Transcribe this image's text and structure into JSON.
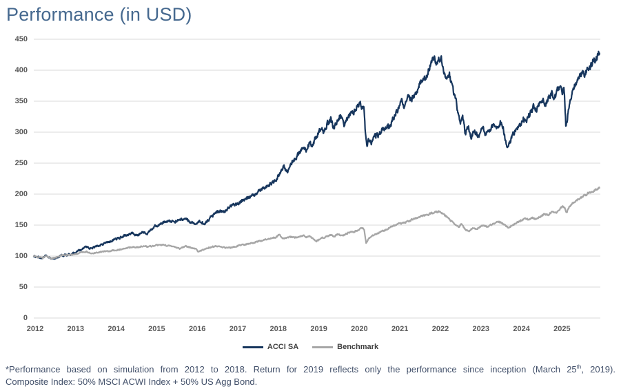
{
  "title": "Performance (in USD)",
  "footnote": {
    "line1_before_sup": "*Performance based on simulation from 2012 to 2018. Return for 2019 reflects only the performance since inception (March 25",
    "line1_sup": "th",
    "line1_after_sup": ", 2019).",
    "line2": "Composite Index: 50% MSCI ACWI Index + 50% US Agg Bond."
  },
  "chart_data": {
    "type": "line",
    "title": "Performance (in USD)",
    "xlabel": "",
    "ylabel": "",
    "x_range": [
      2012,
      2026
    ],
    "ylim": [
      0,
      450
    ],
    "grid": "horizontal",
    "grid_color": "#d9d9d9",
    "x_ticks": [
      "2012",
      "2013",
      "2014",
      "2015",
      "2016",
      "2017",
      "2018",
      "2019",
      "2020",
      "2021",
      "2022",
      "2023",
      "2024",
      "2025"
    ],
    "y_ticks": [
      0,
      50,
      100,
      150,
      200,
      250,
      300,
      350,
      400,
      450
    ],
    "legend_position": "bottom-center",
    "series": [
      {
        "name": "ACCI SA",
        "color": "#17365d",
        "points": [
          [
            2012.0,
            100
          ],
          [
            2012.1,
            98
          ],
          [
            2012.22,
            96.5
          ],
          [
            2012.3,
            101
          ],
          [
            2012.42,
            95.5
          ],
          [
            2012.55,
            97
          ],
          [
            2012.7,
            101
          ],
          [
            2012.85,
            102
          ],
          [
            2013.0,
            105
          ],
          [
            2013.15,
            110
          ],
          [
            2013.3,
            115
          ],
          [
            2013.42,
            112
          ],
          [
            2013.55,
            117
          ],
          [
            2013.7,
            119
          ],
          [
            2013.85,
            123
          ],
          [
            2014.0,
            127
          ],
          [
            2014.15,
            130
          ],
          [
            2014.3,
            134
          ],
          [
            2014.45,
            137
          ],
          [
            2014.55,
            133
          ],
          [
            2014.7,
            139
          ],
          [
            2014.8,
            136
          ],
          [
            2014.9,
            143
          ],
          [
            2015.0,
            148
          ],
          [
            2015.15,
            153
          ],
          [
            2015.3,
            157
          ],
          [
            2015.45,
            155
          ],
          [
            2015.6,
            158
          ],
          [
            2015.75,
            160
          ],
          [
            2015.85,
            156
          ],
          [
            2016.0,
            153
          ],
          [
            2016.1,
            157
          ],
          [
            2016.2,
            152
          ],
          [
            2016.35,
            162
          ],
          [
            2016.5,
            170
          ],
          [
            2016.6,
            174
          ],
          [
            2016.7,
            172
          ],
          [
            2016.85,
            180
          ],
          [
            2017.0,
            184
          ],
          [
            2017.15,
            190
          ],
          [
            2017.3,
            195
          ],
          [
            2017.45,
            200
          ],
          [
            2017.6,
            207
          ],
          [
            2017.75,
            212
          ],
          [
            2017.9,
            219
          ],
          [
            2018.0,
            226
          ],
          [
            2018.1,
            238
          ],
          [
            2018.17,
            245
          ],
          [
            2018.25,
            236
          ],
          [
            2018.35,
            250
          ],
          [
            2018.45,
            258
          ],
          [
            2018.55,
            266
          ],
          [
            2018.65,
            276
          ],
          [
            2018.72,
            270
          ],
          [
            2018.8,
            283
          ],
          [
            2018.88,
            278
          ],
          [
            2018.95,
            290
          ],
          [
            2019.0,
            295
          ],
          [
            2019.08,
            308
          ],
          [
            2019.15,
            300
          ],
          [
            2019.25,
            315
          ],
          [
            2019.33,
            320
          ],
          [
            2019.4,
            305
          ],
          [
            2019.5,
            322
          ],
          [
            2019.57,
            328
          ],
          [
            2019.65,
            310
          ],
          [
            2019.75,
            322
          ],
          [
            2019.85,
            330
          ],
          [
            2019.95,
            340
          ],
          [
            2020.05,
            346
          ],
          [
            2020.1,
            338
          ],
          [
            2020.14,
            345
          ],
          [
            2020.18,
            300
          ],
          [
            2020.22,
            280
          ],
          [
            2020.28,
            290
          ],
          [
            2020.33,
            284
          ],
          [
            2020.4,
            292
          ],
          [
            2020.5,
            296
          ],
          [
            2020.6,
            303
          ],
          [
            2020.7,
            312
          ],
          [
            2020.78,
            306
          ],
          [
            2020.88,
            325
          ],
          [
            2021.0,
            340
          ],
          [
            2021.08,
            350
          ],
          [
            2021.15,
            342
          ],
          [
            2021.25,
            356
          ],
          [
            2021.33,
            352
          ],
          [
            2021.45,
            368
          ],
          [
            2021.55,
            382
          ],
          [
            2021.62,
            392
          ],
          [
            2021.68,
            386
          ],
          [
            2021.75,
            404
          ],
          [
            2021.82,
            412
          ],
          [
            2021.88,
            420
          ],
          [
            2021.93,
            408
          ],
          [
            2022.0,
            418
          ],
          [
            2022.05,
            420
          ],
          [
            2022.1,
            405
          ],
          [
            2022.17,
            385
          ],
          [
            2022.25,
            396
          ],
          [
            2022.33,
            370
          ],
          [
            2022.42,
            352
          ],
          [
            2022.48,
            328
          ],
          [
            2022.53,
            315
          ],
          [
            2022.58,
            325
          ],
          [
            2022.65,
            298
          ],
          [
            2022.72,
            310
          ],
          [
            2022.8,
            292
          ],
          [
            2022.88,
            303
          ],
          [
            2022.95,
            294
          ],
          [
            2023.0,
            297
          ],
          [
            2023.08,
            308
          ],
          [
            2023.15,
            296
          ],
          [
            2023.25,
            303
          ],
          [
            2023.35,
            312
          ],
          [
            2023.45,
            306
          ],
          [
            2023.52,
            316
          ],
          [
            2023.58,
            308
          ],
          [
            2023.63,
            290
          ],
          [
            2023.68,
            278
          ],
          [
            2023.75,
            284
          ],
          [
            2023.83,
            296
          ],
          [
            2023.92,
            306
          ],
          [
            2024.0,
            312
          ],
          [
            2024.08,
            322
          ],
          [
            2024.15,
            316
          ],
          [
            2024.25,
            331
          ],
          [
            2024.33,
            341
          ],
          [
            2024.4,
            334
          ],
          [
            2024.5,
            347
          ],
          [
            2024.57,
            353
          ],
          [
            2024.62,
            342
          ],
          [
            2024.7,
            356
          ],
          [
            2024.78,
            363
          ],
          [
            2024.85,
            354
          ],
          [
            2024.93,
            369
          ],
          [
            2025.0,
            372
          ],
          [
            2025.04,
            366
          ],
          [
            2025.08,
            374
          ],
          [
            2025.1,
            352
          ],
          [
            2025.115,
            330
          ],
          [
            2025.13,
            308
          ],
          [
            2025.18,
            330
          ],
          [
            2025.25,
            352
          ],
          [
            2025.32,
            368
          ],
          [
            2025.4,
            381
          ],
          [
            2025.48,
            390
          ],
          [
            2025.55,
            397
          ],
          [
            2025.6,
            392
          ],
          [
            2025.68,
            406
          ],
          [
            2025.72,
            401
          ],
          [
            2025.8,
            415
          ],
          [
            2025.85,
            419
          ],
          [
            2025.9,
            422
          ],
          [
            2025.96,
            426
          ]
        ]
      },
      {
        "name": "Benchmark",
        "color": "#a6a6a6",
        "points": [
          [
            2012.0,
            100
          ],
          [
            2012.1,
            98.5
          ],
          [
            2012.22,
            97
          ],
          [
            2012.3,
            100
          ],
          [
            2012.42,
            96
          ],
          [
            2012.55,
            98
          ],
          [
            2012.7,
            101
          ],
          [
            2012.85,
            102
          ],
          [
            2013.0,
            102.5
          ],
          [
            2013.15,
            105
          ],
          [
            2013.3,
            107
          ],
          [
            2013.42,
            104
          ],
          [
            2013.55,
            106
          ],
          [
            2013.7,
            107
          ],
          [
            2013.85,
            108
          ],
          [
            2014.0,
            109
          ],
          [
            2014.15,
            111
          ],
          [
            2014.3,
            113
          ],
          [
            2014.45,
            115
          ],
          [
            2014.55,
            114
          ],
          [
            2014.7,
            116
          ],
          [
            2014.8,
            115
          ],
          [
            2014.9,
            116
          ],
          [
            2015.0,
            117
          ],
          [
            2015.15,
            118
          ],
          [
            2015.3,
            117
          ],
          [
            2015.45,
            116
          ],
          [
            2015.6,
            112
          ],
          [
            2015.75,
            116
          ],
          [
            2015.85,
            114
          ],
          [
            2016.0,
            112
          ],
          [
            2016.06,
            107
          ],
          [
            2016.2,
            111
          ],
          [
            2016.35,
            114
          ],
          [
            2016.5,
            116
          ],
          [
            2016.6,
            115
          ],
          [
            2016.75,
            113
          ],
          [
            2016.9,
            114
          ],
          [
            2017.0,
            116
          ],
          [
            2017.15,
            118
          ],
          [
            2017.3,
            120
          ],
          [
            2017.45,
            122
          ],
          [
            2017.6,
            125
          ],
          [
            2017.75,
            127
          ],
          [
            2017.9,
            129
          ],
          [
            2018.0,
            131
          ],
          [
            2018.06,
            135
          ],
          [
            2018.15,
            128
          ],
          [
            2018.25,
            130
          ],
          [
            2018.35,
            131
          ],
          [
            2018.45,
            130
          ],
          [
            2018.55,
            132
          ],
          [
            2018.65,
            133
          ],
          [
            2018.72,
            131
          ],
          [
            2018.8,
            132
          ],
          [
            2018.9,
            127
          ],
          [
            2018.97,
            124
          ],
          [
            2019.08,
            128
          ],
          [
            2019.2,
            131
          ],
          [
            2019.33,
            134
          ],
          [
            2019.42,
            132
          ],
          [
            2019.5,
            135
          ],
          [
            2019.62,
            133
          ],
          [
            2019.75,
            137
          ],
          [
            2019.88,
            139
          ],
          [
            2020.0,
            142
          ],
          [
            2020.1,
            145
          ],
          [
            2020.15,
            143
          ],
          [
            2020.2,
            121
          ],
          [
            2020.26,
            128
          ],
          [
            2020.33,
            131
          ],
          [
            2020.42,
            135
          ],
          [
            2020.52,
            138
          ],
          [
            2020.62,
            141
          ],
          [
            2020.72,
            143
          ],
          [
            2020.82,
            147
          ],
          [
            2020.92,
            150
          ],
          [
            2021.0,
            152
          ],
          [
            2021.1,
            153
          ],
          [
            2021.2,
            155
          ],
          [
            2021.3,
            158
          ],
          [
            2021.42,
            161
          ],
          [
            2021.52,
            163
          ],
          [
            2021.62,
            165
          ],
          [
            2021.72,
            167
          ],
          [
            2021.82,
            169
          ],
          [
            2021.9,
            171
          ],
          [
            2022.0,
            172
          ],
          [
            2022.1,
            168
          ],
          [
            2022.2,
            163
          ],
          [
            2022.3,
            157
          ],
          [
            2022.4,
            151
          ],
          [
            2022.48,
            147
          ],
          [
            2022.55,
            152
          ],
          [
            2022.65,
            143
          ],
          [
            2022.73,
            140
          ],
          [
            2022.82,
            145
          ],
          [
            2022.92,
            144
          ],
          [
            2023.0,
            147
          ],
          [
            2023.1,
            150
          ],
          [
            2023.18,
            147
          ],
          [
            2023.3,
            151
          ],
          [
            2023.42,
            154
          ],
          [
            2023.52,
            155
          ],
          [
            2023.62,
            150
          ],
          [
            2023.7,
            146
          ],
          [
            2023.8,
            149
          ],
          [
            2023.9,
            153
          ],
          [
            2024.0,
            157
          ],
          [
            2024.1,
            160
          ],
          [
            2024.2,
            159
          ],
          [
            2024.3,
            162
          ],
          [
            2024.4,
            160
          ],
          [
            2024.5,
            164
          ],
          [
            2024.6,
            168
          ],
          [
            2024.68,
            166
          ],
          [
            2024.78,
            171
          ],
          [
            2024.88,
            169
          ],
          [
            2024.95,
            174
          ],
          [
            2025.0,
            178
          ],
          [
            2025.06,
            181
          ],
          [
            2025.1,
            178
          ],
          [
            2025.15,
            171
          ],
          [
            2025.22,
            180
          ],
          [
            2025.32,
            186
          ],
          [
            2025.42,
            191
          ],
          [
            2025.55,
            196
          ],
          [
            2025.68,
            201
          ],
          [
            2025.8,
            205
          ],
          [
            2025.9,
            209
          ],
          [
            2025.96,
            211
          ]
        ]
      }
    ]
  },
  "layout_colors": {
    "title": "#46698f",
    "tick_label": "#595959",
    "legend_label": "#404040",
    "gridline": "#d9d9d9",
    "footnote": "#42506a"
  }
}
